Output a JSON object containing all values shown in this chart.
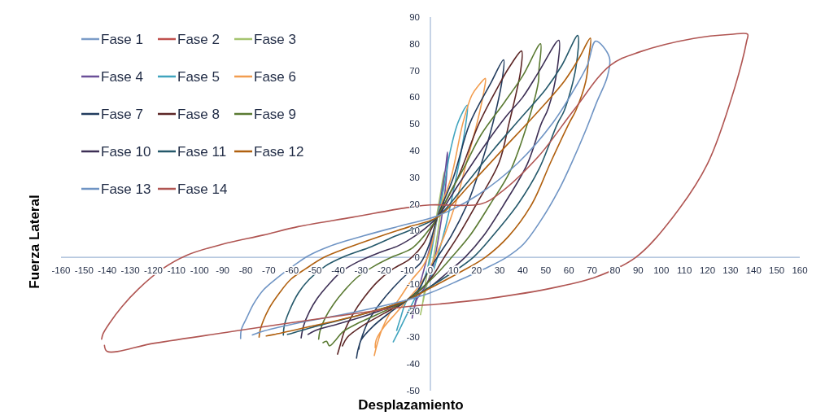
{
  "chart_data": {
    "type": "line",
    "xlabel": "Desplazamiento",
    "ylabel": "Fuerza Lateral",
    "xlim": [
      -160,
      160
    ],
    "xticks": [
      -160,
      -150,
      -140,
      -130,
      -120,
      -110,
      -100,
      -90,
      -80,
      -70,
      -60,
      -50,
      -40,
      -30,
      -20,
      -10,
      0,
      10,
      20,
      30,
      40,
      50,
      60,
      70,
      80,
      90,
      100,
      110,
      120,
      130,
      140,
      150,
      160
    ],
    "ylim": [
      -50,
      90
    ],
    "yticks": [
      -50,
      -40,
      -30,
      -20,
      -10,
      0,
      10,
      20,
      30,
      40,
      50,
      60,
      70,
      80,
      90
    ],
    "grid": false,
    "legend": "top left",
    "line_style": "solid",
    "series": [
      {
        "name": "Fase 1",
        "color": "#7b9cc8",
        "x": [
          null
        ],
        "values": [
          null
        ]
      },
      {
        "name": "Fase 2",
        "color": "#c0504d",
        "x": [
          null
        ],
        "values": [
          null
        ]
      },
      {
        "name": "Fase 3",
        "color": "#a5c46f",
        "x": [
          -4.3,
          -3.5,
          -2,
          0,
          2,
          4,
          6,
          5.5,
          4,
          2,
          0,
          -2,
          -3.2
        ],
        "values": [
          -21.5,
          -18,
          -9,
          2,
          12,
          22,
          32,
          25,
          14,
          3,
          -6,
          -12,
          -16.8
        ]
      },
      {
        "name": "Fase 4",
        "color": "#6b4f99",
        "x": [
          -7.9,
          -6.7,
          -4.3,
          -0.8,
          3,
          5,
          6.5,
          7.4,
          7.2,
          6,
          4,
          2,
          0,
          -3,
          -6,
          -7
        ],
        "values": [
          -22.8,
          -17.5,
          -9.4,
          1.8,
          15,
          25,
          33,
          39.4,
          33,
          22,
          10,
          0,
          -7,
          -12,
          -16,
          -19.4
        ]
      },
      {
        "name": "Fase 5",
        "color": "#40a4be",
        "x": [
          -16.1,
          -14.3,
          -11.4,
          -7.9,
          -4.3,
          -2,
          0,
          3,
          6,
          8.5,
          12,
          16,
          15,
          13,
          10,
          7,
          4,
          2,
          0,
          -4,
          -10,
          -13,
          -14.6
        ],
        "values": [
          -31.7,
          -28.7,
          -23.6,
          -17.5,
          -11.4,
          -6.3,
          0,
          15,
          27,
          39.4,
          50.6,
          57,
          48,
          38,
          25,
          13,
          3,
          -3,
          -8,
          -12,
          -16,
          -23,
          -27.4
        ]
      },
      {
        "name": "Fase 6",
        "color": "#f29d4f",
        "x": [
          -24.3,
          -23.1,
          -20.8,
          -17.3,
          -12.6,
          -7.9,
          -3.2,
          0,
          3,
          9,
          14,
          18,
          21,
          23.8,
          23.3,
          20.3,
          15.6,
          10.9,
          6,
          2,
          -2,
          -6,
          -10,
          -15,
          -20,
          -23.5,
          -23.9
        ],
        "values": [
          -36.8,
          -32.7,
          -26.6,
          -20.5,
          -14.4,
          -8.3,
          -3.3,
          3,
          15,
          30,
          50,
          60.8,
          64.5,
          67,
          62.8,
          50.6,
          35.4,
          20.1,
          8,
          0,
          -7,
          -12,
          -16,
          -21,
          -26,
          -31,
          -33.9
        ]
      },
      {
        "name": "Fase 7",
        "color": "#223c5e",
        "x": [
          -32,
          -31.4,
          -29.6,
          -26.7,
          -22,
          -16.1,
          -10.2,
          -4.3,
          0,
          3,
          10,
          17,
          26,
          31.7,
          31,
          27,
          21,
          16,
          9,
          3,
          -2,
          -5,
          -10,
          -18,
          -25,
          -30,
          -31
        ],
        "values": [
          -37.8,
          -34.8,
          -29.7,
          -23.6,
          -17.5,
          -11.4,
          -6.3,
          -2.2,
          6,
          15,
          30,
          50,
          65,
          74,
          66,
          50,
          32,
          20,
          8,
          0,
          -7,
          -12,
          -16,
          -21,
          -26,
          -31,
          -34.4
        ]
      },
      {
        "name": "Fase 8",
        "color": "#5c2626",
        "x": [
          -40.2,
          -39,
          -37.2,
          -33.7,
          -29,
          -23.1,
          -16.1,
          -9,
          -3,
          0,
          3,
          12,
          21,
          30,
          34,
          39.5,
          39.1,
          35.6,
          34,
          29.7,
          20,
          12,
          6,
          1,
          -4,
          -10,
          -20,
          -30,
          -36,
          -38.1
        ],
        "values": [
          -36.3,
          -32.7,
          -27.6,
          -21.5,
          -15.4,
          -9.3,
          -4.3,
          -0.7,
          5,
          10,
          15,
          30,
          50,
          65,
          71,
          77.3,
          70,
          55.7,
          50,
          35.4,
          20,
          8,
          0,
          -7,
          -12,
          -16,
          -21,
          -26,
          -30,
          -33.2
        ]
      },
      {
        "name": "Fase 9",
        "color": "#5a7a32",
        "x": [
          -48.4,
          -47.8,
          -45.5,
          -41.9,
          -37.2,
          -31.4,
          -24.3,
          -16.1,
          -7.9,
          0,
          3,
          9,
          14.4,
          22,
          32,
          40,
          47.7,
          47,
          46.8,
          42,
          34.4,
          26,
          17,
          9.2,
          3,
          -3,
          -10,
          -22,
          -32,
          -38,
          -41,
          -43.7,
          -45,
          -46.5
        ],
        "values": [
          -30.7,
          -27.6,
          -22.6,
          -17.5,
          -12.4,
          -7.3,
          -3.3,
          0.3,
          3.4,
          11,
          15,
          25,
          33.3,
          46,
          58,
          68,
          80,
          70,
          65.9,
          50,
          32,
          20,
          8,
          0,
          -6,
          -11,
          -16,
          -21,
          -25,
          -28,
          -31,
          -33.2,
          -31.5,
          -32
        ]
      },
      {
        "name": "Fase 10",
        "color": "#3d2f55",
        "x": [
          -56,
          -54.9,
          -52.5,
          -49,
          -44.3,
          -38.4,
          -31.4,
          -22,
          -13.7,
          -5,
          0,
          3,
          12,
          22,
          33,
          40,
          47.3,
          55.6,
          55,
          51,
          48,
          42,
          32,
          23,
          15,
          7,
          0,
          -10,
          -25,
          -40,
          -50,
          -53
        ],
        "values": [
          -30.2,
          -25.6,
          -20.5,
          -15.4,
          -10.4,
          -5.3,
          -1.7,
          1.8,
          4.4,
          9,
          12.5,
          15,
          27,
          40,
          53,
          60,
          70,
          81.3,
          71,
          55.7,
          50,
          35,
          20,
          8,
          0,
          -6,
          -11,
          -16,
          -21,
          -25,
          -27.5,
          -28.9
        ]
      },
      {
        "name": "Fase 11",
        "color": "#24586a",
        "x": [
          -63.7,
          -63.3,
          -61.3,
          -57.2,
          -52.5,
          -45.5,
          -37.2,
          -25.5,
          -15,
          -5,
          3,
          15,
          27,
          39,
          50,
          57,
          63.8,
          63,
          58,
          55,
          47,
          38,
          27,
          18.6,
          9,
          0,
          -10,
          -30,
          -50,
          -60,
          -61.9
        ],
        "values": [
          -29.2,
          -25.6,
          -20.5,
          -13.4,
          -8.3,
          -3.3,
          0.3,
          4,
          8,
          11.5,
          15,
          27,
          40,
          52,
          63,
          72,
          83.1,
          71,
          55,
          50,
          33,
          20,
          8,
          0,
          -6,
          -11,
          -16,
          -21.5,
          -26,
          -28.5,
          -28.9
        ]
      },
      {
        "name": "Fase 12",
        "color": "#b0600f",
        "x": [
          -74.2,
          -73.7,
          -70.1,
          -65.4,
          -60.5,
          -54,
          -46,
          -36,
          -23,
          -9,
          3,
          18,
          32,
          46,
          58,
          64,
          69.3,
          68.5,
          67.3,
          63,
          60.3,
          52,
          44,
          34,
          23.8,
          12,
          0,
          -10,
          -30,
          -55,
          -68,
          -71.1
        ],
        "values": [
          -29.9,
          -27.1,
          -19.5,
          -13.4,
          -8.3,
          -4.3,
          0,
          3.5,
          7.5,
          11.5,
          15,
          28,
          41,
          54,
          66,
          74,
          82.1,
          74,
          65.9,
          55,
          50.6,
          35.4,
          20,
          8,
          0,
          -6,
          -11.5,
          -16,
          -21.5,
          -26.5,
          -29,
          -29.5
        ]
      },
      {
        "name": "Fase 13",
        "color": "#6f94c4",
        "x": [
          -82.2,
          -81.9,
          -79.5,
          -76.6,
          -72.5,
          -66,
          -59,
          -53,
          -44,
          -29,
          -12,
          3,
          20.3,
          38,
          53.2,
          63,
          68,
          71.6,
          77.5,
          76.7,
          72,
          67.3,
          61,
          55.6,
          48,
          40.3,
          33,
          23,
          13.3,
          -0.3,
          -10,
          -22,
          -40,
          -57.2,
          -72,
          -77.1
        ],
        "values": [
          -30.5,
          -27.1,
          -22.6,
          -17.5,
          -12.4,
          -7.5,
          -3,
          0.5,
          4,
          8,
          12,
          15.5,
          23.2,
          35.4,
          50.6,
          64,
          72,
          81,
          75,
          67.9,
          58,
          47.6,
          35,
          25.2,
          14,
          4.9,
          0,
          -4.5,
          -8.3,
          -13.4,
          -16,
          -18.5,
          -21.8,
          -24.6,
          -27.6,
          -29.1
        ]
      },
      {
        "name": "Fase 14",
        "color": "#b05552",
        "x": [
          -142.4,
          -141.8,
          -138.9,
          -133.6,
          -126.5,
          -116,
          -105.4,
          -90,
          -72.5,
          -57.2,
          -33.7,
          -10.2,
          0,
          22,
          30,
          47,
          62,
          78,
          90.8,
          114,
          130,
          137.4,
          137,
          131.9,
          120,
          105,
          89,
          72,
          54,
          25,
          4,
          -10.2,
          -40,
          -84.2,
          -119.5,
          -140,
          -141.2
        ],
        "values": [
          -30.7,
          -28.7,
          -24.6,
          -18.5,
          -11.9,
          -4.3,
          0.8,
          4.9,
          8.3,
          11.5,
          15,
          18.6,
          19.6,
          20,
          24,
          38,
          55,
          72,
          77,
          82,
          83.5,
          83.6,
          81,
          63.8,
          35,
          15,
          0,
          -7.3,
          -11.3,
          -15.5,
          -17.5,
          -18.5,
          -22,
          -27.6,
          -32.2,
          -35.3,
          -33
        ]
      }
    ]
  }
}
